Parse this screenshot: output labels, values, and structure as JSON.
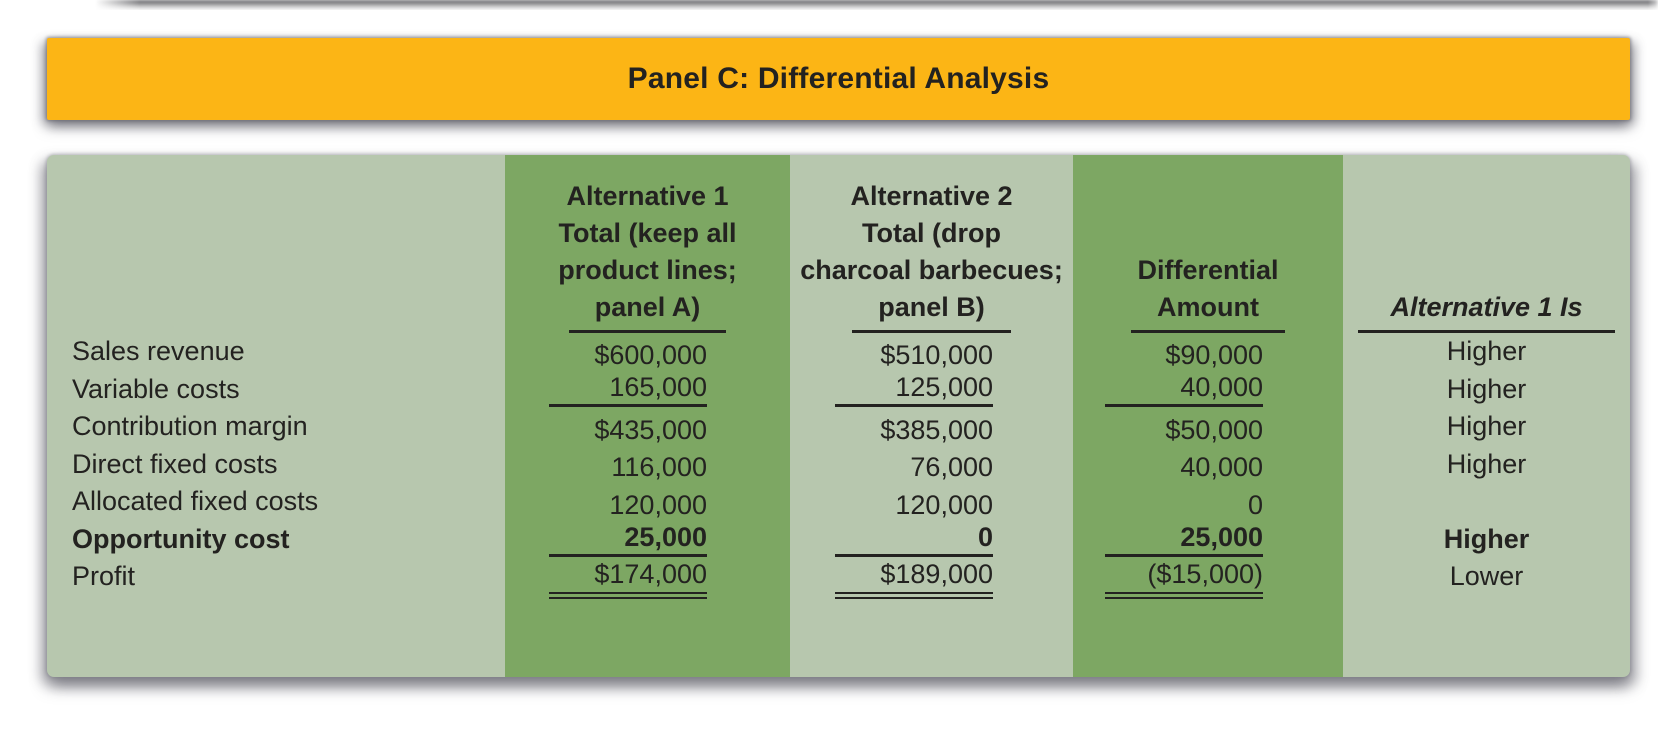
{
  "banner": {
    "title": "Panel C: Differential Analysis"
  },
  "table": {
    "headers": {
      "alt1": [
        "Alternative 1",
        "Total (keep all",
        "product lines;",
        "panel A)"
      ],
      "alt2": [
        "Alternative 2",
        "Total (drop",
        "charcoal barbecues;",
        "panel B)"
      ],
      "diff": [
        "Differential",
        "Amount"
      ],
      "alt1is": "Alternative 1 Is"
    },
    "rows": [
      {
        "label": "Sales revenue",
        "alt1": "$600,000",
        "alt2": "$510,000",
        "diff": "$90,000",
        "alt1is": "Higher"
      },
      {
        "label": "Variable costs",
        "alt1": "165,000",
        "alt2": "125,000",
        "diff": "40,000",
        "alt1is": "Higher"
      },
      {
        "label": "Contribution margin",
        "alt1": "$435,000",
        "alt2": "$385,000",
        "diff": "$50,000",
        "alt1is": "Higher"
      },
      {
        "label": "Direct fixed costs",
        "alt1": "116,000",
        "alt2": "76,000",
        "diff": "40,000",
        "alt1is": "Higher"
      },
      {
        "label": "Allocated fixed costs",
        "alt1": "120,000",
        "alt2": "120,000",
        "diff": "0",
        "alt1is": ""
      },
      {
        "label": "Opportunity cost",
        "alt1": "25,000",
        "alt2": "0",
        "diff": "25,000",
        "alt1is": "Higher"
      },
      {
        "label": "Profit",
        "alt1": "$174,000",
        "alt2": "$189,000",
        "diff": "($15,000)",
        "alt1is": "Lower"
      }
    ]
  },
  "colors": {
    "banner_bg": "#FCB515",
    "table_bg_light": "#B7C7AE",
    "table_bg_dark": "#7DA763",
    "text": "#232220",
    "page_bg": "#FFFFFF"
  }
}
